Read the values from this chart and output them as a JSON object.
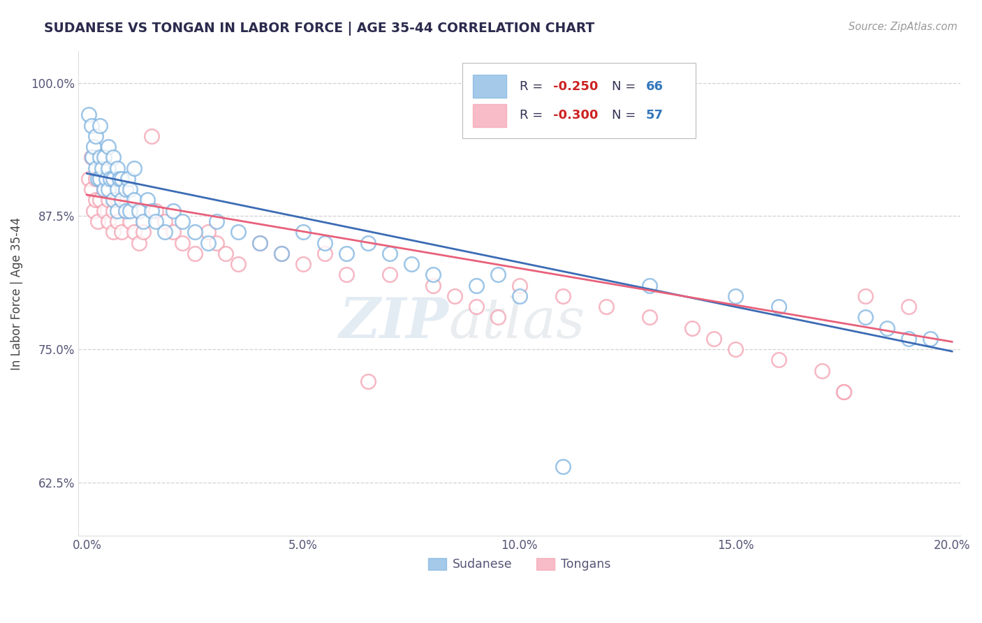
{
  "title": "SUDANESE VS TONGAN IN LABOR FORCE | AGE 35-44 CORRELATION CHART",
  "source_text": "Source: ZipAtlas.com",
  "xlabel": "",
  "ylabel": "In Labor Force | Age 35-44",
  "xlim": [
    -0.002,
    0.202
  ],
  "ylim": [
    0.575,
    1.03
  ],
  "xticks": [
    0.0,
    0.05,
    0.1,
    0.15,
    0.2
  ],
  "xticklabels": [
    "0.0%",
    "5.0%",
    "10.0%",
    "15.0%",
    "20.0%"
  ],
  "yticks": [
    0.625,
    0.75,
    0.875,
    1.0
  ],
  "yticklabels": [
    "62.5%",
    "75.0%",
    "87.5%",
    "100.0%"
  ],
  "watermark_zip": "ZIP",
  "watermark_atlas": "atlas",
  "legend_label1": "R = -0.250  N = 66",
  "legend_label2": "R = -0.300  N = 57",
  "blue_color": "#7EB3E0",
  "pink_color": "#F4A0B0",
  "blue_line_color": "#3B6BB5",
  "pink_line_color": "#E8607A",
  "title_color": "#2B2B4E",
  "axis_color": "#555577",
  "ytick_color": "#5599CC",
  "blue_line_y0": 0.915,
  "blue_line_y1": 0.748,
  "pink_line_y0": 0.895,
  "pink_line_y1": 0.757,
  "background_color": "#FFFFFF",
  "grid_color": "#CCCCCC",
  "blue_scatter_x": [
    0.0005,
    0.001,
    0.0012,
    0.0015,
    0.002,
    0.002,
    0.0025,
    0.003,
    0.003,
    0.003,
    0.0035,
    0.004,
    0.004,
    0.0045,
    0.005,
    0.005,
    0.005,
    0.0055,
    0.006,
    0.006,
    0.006,
    0.007,
    0.007,
    0.007,
    0.0075,
    0.008,
    0.008,
    0.009,
    0.009,
    0.0095,
    0.01,
    0.01,
    0.011,
    0.011,
    0.012,
    0.013,
    0.014,
    0.015,
    0.016,
    0.018,
    0.02,
    0.022,
    0.025,
    0.028,
    0.03,
    0.035,
    0.04,
    0.045,
    0.05,
    0.055,
    0.06,
    0.065,
    0.07,
    0.075,
    0.08,
    0.09,
    0.095,
    0.1,
    0.11,
    0.13,
    0.15,
    0.16,
    0.18,
    0.185,
    0.19,
    0.195
  ],
  "blue_scatter_y": [
    0.97,
    0.96,
    0.93,
    0.94,
    0.92,
    0.95,
    0.91,
    0.93,
    0.96,
    0.91,
    0.92,
    0.9,
    0.93,
    0.91,
    0.92,
    0.94,
    0.9,
    0.91,
    0.93,
    0.89,
    0.91,
    0.92,
    0.9,
    0.88,
    0.91,
    0.89,
    0.91,
    0.9,
    0.88,
    0.91,
    0.88,
    0.9,
    0.92,
    0.89,
    0.88,
    0.87,
    0.89,
    0.88,
    0.87,
    0.86,
    0.88,
    0.87,
    0.86,
    0.85,
    0.87,
    0.86,
    0.85,
    0.84,
    0.86,
    0.85,
    0.84,
    0.85,
    0.84,
    0.83,
    0.82,
    0.81,
    0.82,
    0.8,
    0.64,
    0.81,
    0.8,
    0.79,
    0.78,
    0.77,
    0.76,
    0.76
  ],
  "pink_scatter_x": [
    0.0005,
    0.001,
    0.001,
    0.0015,
    0.002,
    0.002,
    0.0025,
    0.003,
    0.003,
    0.004,
    0.004,
    0.005,
    0.005,
    0.006,
    0.006,
    0.007,
    0.007,
    0.008,
    0.009,
    0.01,
    0.011,
    0.012,
    0.013,
    0.015,
    0.016,
    0.018,
    0.02,
    0.022,
    0.025,
    0.028,
    0.03,
    0.032,
    0.035,
    0.04,
    0.045,
    0.05,
    0.055,
    0.06,
    0.065,
    0.07,
    0.08,
    0.085,
    0.09,
    0.095,
    0.1,
    0.11,
    0.12,
    0.13,
    0.14,
    0.145,
    0.15,
    0.16,
    0.17,
    0.175,
    0.175,
    0.18,
    0.19
  ],
  "pink_scatter_y": [
    0.91,
    0.9,
    0.93,
    0.88,
    0.91,
    0.89,
    0.87,
    0.91,
    0.89,
    0.88,
    0.9,
    0.89,
    0.87,
    0.86,
    0.88,
    0.89,
    0.87,
    0.86,
    0.88,
    0.87,
    0.86,
    0.85,
    0.86,
    0.95,
    0.88,
    0.87,
    0.86,
    0.85,
    0.84,
    0.86,
    0.85,
    0.84,
    0.83,
    0.85,
    0.84,
    0.83,
    0.84,
    0.82,
    0.72,
    0.82,
    0.81,
    0.8,
    0.79,
    0.78,
    0.81,
    0.8,
    0.79,
    0.78,
    0.77,
    0.76,
    0.75,
    0.74,
    0.73,
    0.71,
    0.71,
    0.8,
    0.79
  ]
}
